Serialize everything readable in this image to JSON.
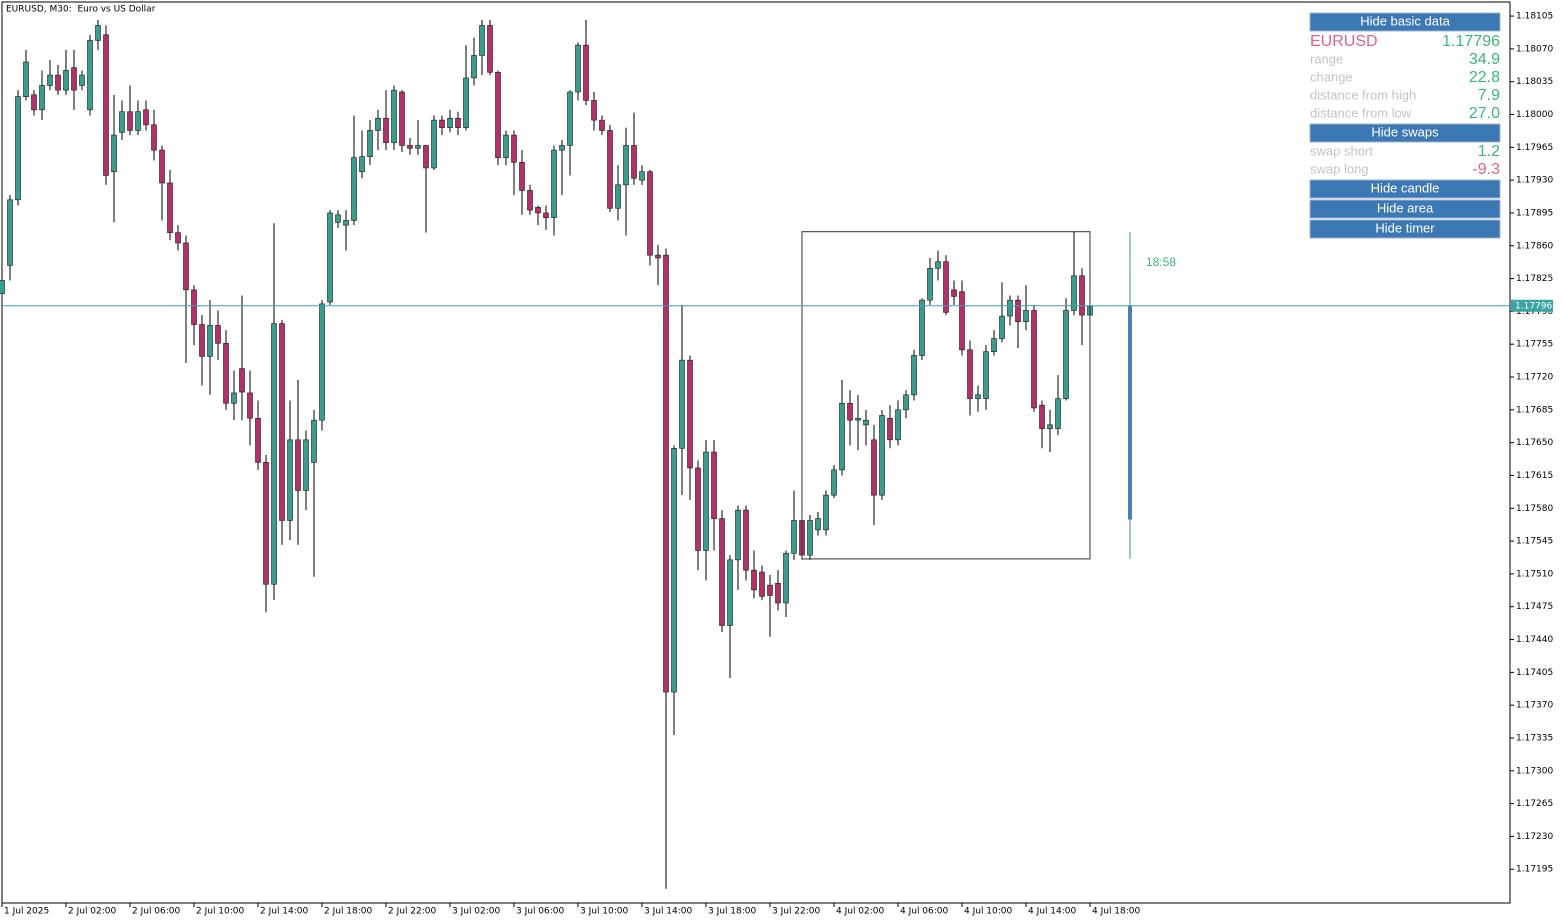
{
  "chart_data": {
    "type": "candlestick",
    "title": "EURUSD, M30:  Euro vs US Dollar",
    "categories": [
      "1 Jul 2025",
      null,
      null,
      null,
      null,
      null,
      null,
      null,
      "2 Jul 02:00",
      null,
      null,
      null,
      null,
      null,
      null,
      null,
      "2 Jul 06:00",
      null,
      null,
      null,
      null,
      null,
      null,
      null,
      "2 Jul 10:00",
      null,
      null,
      null,
      null,
      null,
      null,
      null,
      "2 Jul 14:00",
      null,
      null,
      null,
      null,
      null,
      null,
      null,
      "2 Jul 18:00",
      null,
      null,
      null,
      null,
      null,
      null,
      null,
      "2 Jul 22:00",
      null,
      null,
      null,
      null,
      null,
      null,
      null,
      "3 Jul 02:00",
      null,
      null,
      null,
      null,
      null,
      null,
      null,
      "3 Jul 06:00",
      null,
      null,
      null,
      null,
      null,
      null,
      null,
      "3 Jul 10:00",
      null,
      null,
      null,
      null,
      null,
      null,
      null,
      "3 Jul 14:00",
      null,
      null,
      null,
      null,
      null,
      null,
      null,
      "3 Jul 18:00",
      null,
      null,
      null,
      null,
      null,
      null,
      null,
      "3 Jul 22:00",
      null,
      null,
      null,
      null,
      null,
      null,
      null,
      "4 Jul 02:00",
      null,
      null,
      null,
      null,
      null,
      null,
      null,
      "4 Jul 06:00",
      null,
      null,
      null,
      null,
      null,
      null,
      null,
      "4 Jul 10:00",
      null,
      null,
      null,
      null,
      null,
      null,
      null,
      "4 Jul 14:00",
      null,
      null,
      null,
      null,
      null,
      null,
      null,
      "4 Jul 18:00"
    ],
    "open": [
      1.17809,
      1.17839,
      1.17909,
      1.18019,
      1.18021,
      1.18005,
      1.18031,
      1.18042,
      1.18026,
      1.1805,
      1.18031,
      1.18005,
      1.18079,
      1.18085,
      1.17939,
      1.17981,
      1.18003,
      1.17983,
      1.18005,
      1.17989,
      1.17962,
      1.17927,
      1.17874,
      1.17863,
      1.17813,
      1.17776,
      1.17742,
      1.17775,
      1.17756,
      1.17692,
      1.17729,
      1.17703,
      1.17676,
      1.17629,
      1.17499,
      1.17777,
      1.17567,
      1.17653,
      1.17599,
      1.17629,
      1.17674,
      1.178,
      1.17885,
      1.17882,
      1.17887,
      1.17939,
      1.17955,
      1.17983,
      1.17996,
      1.1797,
      1.18024,
      1.17967,
      1.17964,
      1.17967,
      1.17943,
      1.17994,
      1.17986,
      1.17996,
      1.17986,
      1.18039,
      1.18063,
      1.18095,
      1.18045,
      1.17954,
      1.17978,
      1.17949,
      1.17919,
      1.17901,
      1.17895,
      1.1789,
      1.17962,
      1.17967,
      1.18024,
      1.18074,
      1.18015,
      1.17994,
      1.17983,
      1.179,
      1.17925,
      1.17967,
      1.1793,
      1.17939,
      1.1785,
      1.1785,
      1.17384,
      1.17644,
      1.17738,
      1.17623,
      1.17535,
      1.1764,
      1.17569,
      1.17455,
      1.17525,
      1.17578,
      1.17514,
      1.17512,
      1.17498,
      1.175,
      1.17479,
      1.17532,
      1.17567,
      1.1753,
      1.17557,
      1.17557,
      1.17594,
      1.17621,
      1.17692,
      1.17674,
      1.17669,
      1.17653,
      1.17594,
      1.17676,
      1.17653,
      1.17685,
      1.17701,
      1.17743,
      1.17802,
      1.17836,
      1.17843,
      1.17813,
      1.17811,
      1.17749,
      1.17697,
      1.17697,
      1.17747,
      1.17761,
      1.17785,
      1.17802,
      1.17779,
      1.17791,
      1.1769,
      1.17665,
      1.17665,
      1.17697,
      1.17791,
      1.17828,
      1.17786
    ],
    "high": [
      1.17855,
      1.17914,
      1.18026,
      1.18069,
      1.18026,
      1.18047,
      1.18058,
      1.18053,
      1.18069,
      1.18069,
      1.18047,
      1.18085,
      1.18101,
      1.18095,
      1.18021,
      1.18015,
      1.18031,
      1.18015,
      1.18015,
      1.18005,
      1.17967,
      1.17941,
      1.17882,
      1.17871,
      1.17818,
      1.17786,
      1.17802,
      1.17791,
      1.1777,
      1.17727,
      1.17807,
      1.17727,
      1.17695,
      1.17637,
      1.17884,
      1.17781,
      1.17695,
      1.17717,
      1.17663,
      1.17685,
      1.17802,
      1.17898,
      1.17898,
      1.17898,
      1.17999,
      1.17983,
      1.17994,
      1.18005,
      1.18026,
      1.18031,
      1.18026,
      1.17975,
      1.17994,
      1.17967,
      1.17999,
      1.17999,
      1.18005,
      1.18003,
      1.18074,
      1.18082,
      1.18101,
      1.18101,
      1.18047,
      1.17983,
      1.17983,
      1.17962,
      1.17925,
      1.17903,
      1.17903,
      1.17967,
      1.17973,
      1.18026,
      1.18077,
      1.18101,
      1.18024,
      1.17999,
      1.17989,
      1.17946,
      1.17986,
      1.18002,
      1.17946,
      1.17941,
      1.17861,
      1.17857,
      1.17647,
      1.17797,
      1.17743,
      1.17631,
      1.17653,
      1.17653,
      1.17578,
      1.1753,
      1.17583,
      1.17583,
      1.17535,
      1.17519,
      1.17509,
      1.17514,
      1.17535,
      1.17599,
      1.17573,
      1.17573,
      1.17576,
      1.17599,
      1.17626,
      1.17717,
      1.17706,
      1.17701,
      1.17685,
      1.17669,
      1.17685,
      1.1769,
      1.17695,
      1.17706,
      1.17749,
      1.17804,
      1.17847,
      1.17855,
      1.1785,
      1.17823,
      1.17823,
      1.17759,
      1.17711,
      1.17754,
      1.1777,
      1.17821,
      1.17807,
      1.17807,
      1.17818,
      1.17797,
      1.17695,
      1.17685,
      1.17722,
      1.17804,
      1.17875,
      1.17836,
      1.17813
    ],
    "low": [
      1.17802,
      1.17823,
      1.17903,
      1.18015,
      1.17999,
      1.17994,
      1.18026,
      1.18021,
      1.18021,
      1.18005,
      1.18026,
      1.17999,
      1.18069,
      1.17925,
      1.17885,
      1.17973,
      1.17978,
      1.17978,
      1.17983,
      1.17951,
      1.17887,
      1.17866,
      1.17855,
      1.17735,
      1.17754,
      1.17711,
      1.17701,
      1.17738,
      1.17685,
      1.17674,
      1.17674,
      1.17647,
      1.17621,
      1.17469,
      1.17482,
      1.17541,
      1.17546,
      1.17541,
      1.17578,
      1.17507,
      1.17663,
      1.17797,
      1.17879,
      1.17855,
      1.17882,
      1.17932,
      1.17946,
      1.17962,
      1.17962,
      1.17962,
      1.1796,
      1.17957,
      1.17957,
      1.17874,
      1.17941,
      1.17978,
      1.17981,
      1.17978,
      1.17983,
      1.18031,
      1.18042,
      1.18042,
      1.17946,
      1.17946,
      1.17914,
      1.17893,
      1.17893,
      1.17882,
      1.17877,
      1.17871,
      1.17914,
      1.17935,
      1.18015,
      1.1801,
      1.17983,
      1.17978,
      1.17896,
      1.17887,
      1.17871,
      1.17925,
      1.17925,
      1.17839,
      1.17818,
      1.17174,
      1.17338,
      1.17594,
      1.17589,
      1.17514,
      1.17503,
      1.17535,
      1.17448,
      1.17399,
      1.17493,
      1.17503,
      1.17484,
      1.17482,
      1.17443,
      1.17471,
      1.17464,
      1.17525,
      1.17525,
      1.17525,
      1.17551,
      1.17551,
      1.17591,
      1.17615,
      1.17647,
      1.17642,
      1.17647,
      1.17562,
      1.17589,
      1.17644,
      1.17647,
      1.17676,
      1.17695,
      1.17738,
      1.17797,
      1.17823,
      1.17786,
      1.17797,
      1.17743,
      1.17679,
      1.17683,
      1.17685,
      1.17743,
      1.17757,
      1.17775,
      1.17751,
      1.1777,
      1.17683,
      1.17644,
      1.1764,
      1.17658,
      1.17695,
      1.17786,
      1.17754,
      1.1777
    ],
    "close": [
      1.17823,
      1.17909,
      1.18019,
      1.18056,
      1.18005,
      1.18031,
      1.18042,
      1.18026,
      1.18047,
      1.18026,
      1.18042,
      1.18079,
      1.18095,
      1.17935,
      1.17978,
      1.18003,
      1.17983,
      1.18003,
      1.17989,
      1.17962,
      1.17927,
      1.17874,
      1.17863,
      1.17813,
      1.17776,
      1.17742,
      1.17775,
      1.17756,
      1.17692,
      1.17703,
      1.17704,
      1.17676,
      1.17629,
      1.17499,
      1.17777,
      1.17567,
      1.17653,
      1.17599,
      1.17653,
      1.17674,
      1.17798,
      1.17895,
      1.17893,
      1.17887,
      1.17954,
      1.17955,
      1.17983,
      1.17996,
      1.1797,
      1.18026,
      1.17967,
      1.17964,
      1.17967,
      1.17943,
      1.17994,
      1.17986,
      1.17996,
      1.17986,
      1.18039,
      1.18063,
      1.18095,
      1.18045,
      1.17954,
      1.17978,
      1.17949,
      1.17919,
      1.17898,
      1.17895,
      1.1789,
      1.17962,
      1.17967,
      1.18024,
      1.18074,
      1.18015,
      1.17994,
      1.17983,
      1.179,
      1.17925,
      1.17967,
      1.17932,
      1.17939,
      1.1785,
      1.17847,
      1.17384,
      1.17644,
      1.17738,
      1.17623,
      1.17535,
      1.1764,
      1.17569,
      1.17455,
      1.17525,
      1.17578,
      1.17514,
      1.17493,
      1.17486,
      1.17487,
      1.17479,
      1.17532,
      1.17567,
      1.1753,
      1.17567,
      1.17569,
      1.17594,
      1.17621,
      1.17692,
      1.17674,
      1.17676,
      1.17674,
      1.17594,
      1.17679,
      1.17653,
      1.17685,
      1.17701,
      1.17743,
      1.17802,
      1.17836,
      1.17843,
      1.17789,
      1.17806,
      1.17749,
      1.17697,
      1.17701,
      1.17747,
      1.17761,
      1.17785,
      1.17802,
      1.17779,
      1.17791,
      1.17687,
      1.17665,
      1.17669,
      1.17697,
      1.17791,
      1.17828,
      1.17786,
      1.17796
    ],
    "up_color": "#3a9d8f",
    "down_color": "#b3306a",
    "ylim": [
      1.17159,
      1.1812
    ],
    "yticks": [
      1.17195,
      {
        "value": 1.1723,
        "label": "1.17230"
      },
      1.17265,
      {
        "value": 1.173,
        "label": "1.17300"
      },
      1.17335,
      {
        "value": 1.1737,
        "label": "1.17370"
      },
      1.17405,
      {
        "value": 1.1744,
        "label": "1.17440"
      },
      1.17475,
      {
        "value": 1.1751,
        "label": "1.17510"
      },
      1.17545,
      {
        "value": 1.1758,
        "label": "1.17580"
      },
      1.17615,
      {
        "value": 1.1765,
        "label": "1.17650"
      },
      1.17685,
      {
        "value": 1.1772,
        "label": "1.17720"
      },
      1.17755,
      {
        "value": 1.1779,
        "label": "1.17790"
      },
      1.17825,
      {
        "value": 1.1786,
        "label": "1.17860"
      },
      1.17895,
      {
        "value": 1.1793,
        "label": "1.17930"
      },
      1.17965,
      {
        "value": 1.18,
        "label": "1.18000"
      },
      1.18035,
      {
        "value": 1.1807,
        "label": "1.18070"
      },
      1.18105
    ],
    "bid": 1.17796,
    "bid_color": "#3aa3a3",
    "area": {
      "high": 1.17875,
      "low": 1.17526
    },
    "htf_candle": {
      "open": 1.17568,
      "high": 1.17875,
      "low": 1.17526,
      "close": 1.17796,
      "color": "#4a80b8"
    },
    "timer": "18:58"
  },
  "panel": {
    "buttons": [
      "Hide basic data",
      "Hide swaps",
      "Hide candle",
      "Hide area",
      "Hide timer"
    ],
    "symbol": "EURUSD",
    "price": "1.17796",
    "stats": [
      [
        "range",
        "34.9"
      ],
      [
        "change",
        "22.8"
      ],
      [
        "distance from high",
        "7.9"
      ],
      [
        "distance from low",
        "27.0"
      ]
    ],
    "swaps": [
      [
        "swap short",
        "1.2"
      ],
      [
        "swap long",
        "-9.3"
      ]
    ]
  }
}
